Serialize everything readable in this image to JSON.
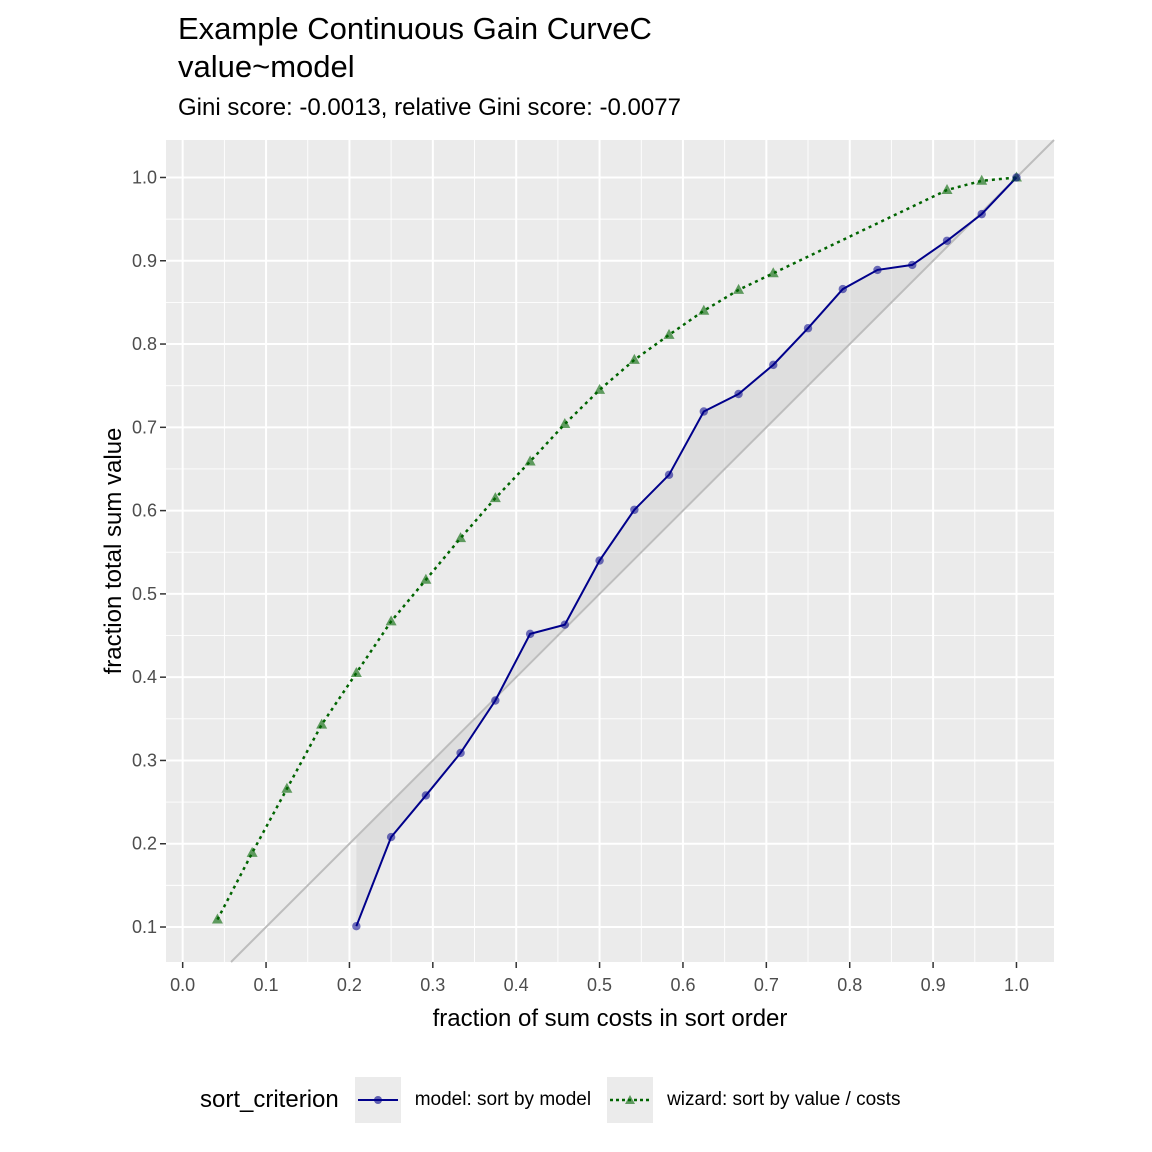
{
  "title_line1": "Example Continuous Gain CurveC",
  "title_line2": "value~model",
  "subtitle": "Gini score: -0.0013, relative Gini score: -0.0077",
  "legend": {
    "title": "sort_criterion",
    "items": [
      {
        "label": "model: sort by model",
        "color": "#00008B",
        "linetype": "solid",
        "marker": "circle"
      },
      {
        "label": "wizard: sort by  value / costs",
        "color": "#006400",
        "linetype": "dotted",
        "marker": "triangle"
      }
    ]
  },
  "colors": {
    "panel_background": "#EBEBEB",
    "grid": "#FFFFFF",
    "diagonal": "#BDBDBD",
    "shade": "#D3D3D3",
    "model": "#00008B",
    "wizard": "#006400"
  },
  "chart_data": {
    "type": "line",
    "xlabel": "fraction of sum costs  in sort order",
    "ylabel": "fraction total sum value",
    "xlim": [
      -0.02,
      1.045
    ],
    "ylim": [
      0.058,
      1.045
    ],
    "x_ticks": [
      0.0,
      0.1,
      0.2,
      0.3,
      0.4,
      0.5,
      0.6,
      0.7,
      0.8,
      0.9,
      1.0
    ],
    "x_tick_labels": [
      "0.0",
      "0.1",
      "0.2",
      "0.3",
      "0.4",
      "0.5",
      "0.6",
      "0.7",
      "0.8",
      "0.9",
      "1.0"
    ],
    "y_ticks": [
      0.1,
      0.2,
      0.3,
      0.4,
      0.5,
      0.6,
      0.7,
      0.8,
      0.9,
      1.0
    ],
    "y_tick_labels": [
      "0.1",
      "0.2",
      "0.3",
      "0.4",
      "0.5",
      "0.6",
      "0.7",
      "0.8",
      "0.9",
      "1.0"
    ],
    "grid": true,
    "legend_position": "bottom",
    "reference_line": {
      "slope": 1,
      "intercept": 0
    },
    "series": [
      {
        "name": "model: sort by model",
        "x": [
          0.2083,
          0.25,
          0.2917,
          0.3333,
          0.375,
          0.4167,
          0.4583,
          0.5,
          0.5417,
          0.5833,
          0.625,
          0.6667,
          0.7083,
          0.75,
          0.7917,
          0.8333,
          0.875,
          0.9167,
          0.9583,
          1.0
        ],
        "y": [
          0.101,
          0.208,
          0.258,
          0.309,
          0.372,
          0.452,
          0.463,
          0.54,
          0.601,
          0.643,
          0.719,
          0.74,
          0.775,
          0.819,
          0.866,
          0.889,
          0.895,
          0.924,
          0.956,
          1.0
        ]
      },
      {
        "name": "wizard: sort by  value / costs",
        "x": [
          0.0417,
          0.0833,
          0.125,
          0.1667,
          0.2083,
          0.25,
          0.2917,
          0.3333,
          0.375,
          0.4167,
          0.4583,
          0.5,
          0.5417,
          0.5833,
          0.625,
          0.6667,
          0.7083,
          0.9167,
          0.9583,
          1.0
        ],
        "y": [
          0.109,
          0.189,
          0.266,
          0.343,
          0.405,
          0.467,
          0.517,
          0.567,
          0.615,
          0.659,
          0.704,
          0.745,
          0.781,
          0.811,
          0.84,
          0.865,
          0.885,
          0.985,
          0.996,
          1.0
        ]
      }
    ]
  }
}
